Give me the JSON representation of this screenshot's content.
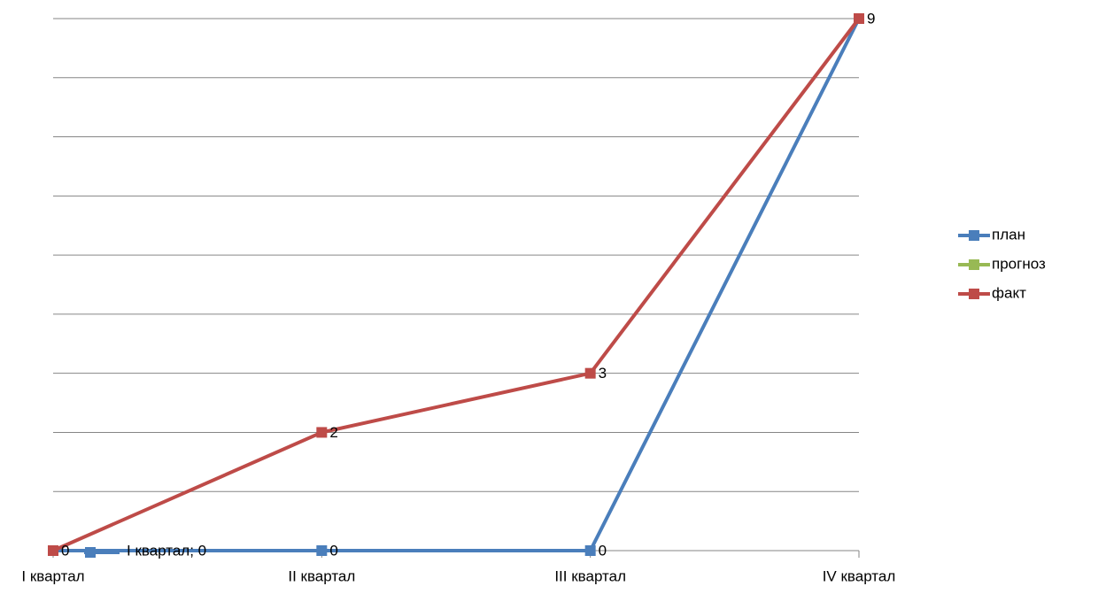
{
  "chart_data": {
    "type": "line",
    "categories": [
      "I квартал",
      "II квартал",
      "III квартал",
      "IV квартал"
    ],
    "series": [
      {
        "name": "план",
        "color": "#4a7ebb",
        "values": [
          0,
          0,
          0,
          9
        ],
        "value_labels": [
          "I квартал; 0",
          "0",
          "0",
          null
        ]
      },
      {
        "name": "прогноз",
        "color": "#98b954",
        "values": [
          null,
          null,
          null,
          null
        ]
      },
      {
        "name": "факт",
        "color": "#be4b48",
        "values": [
          0,
          2,
          3,
          9
        ],
        "value_labels": [
          "0",
          "2",
          "3",
          "9"
        ]
      }
    ],
    "ylim": [
      0,
      9
    ],
    "yticks": [
      0,
      1,
      2,
      3,
      4,
      5,
      6,
      7,
      8,
      9
    ],
    "grid": true,
    "legend": "right"
  }
}
